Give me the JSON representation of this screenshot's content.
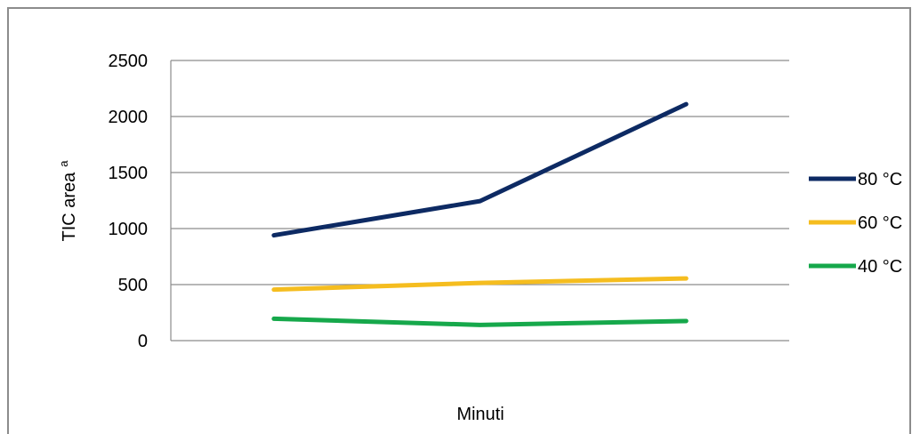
{
  "chart_data": {
    "type": "line",
    "title": "",
    "xlabel": "Minuti",
    "ylabel": "TIC area",
    "ylabel_superscript": "a",
    "categories": [
      "",
      "",
      ""
    ],
    "ylim": [
      0,
      2500
    ],
    "yticks": [
      "0",
      "500",
      "1000",
      "1500",
      "2000",
      "2500"
    ],
    "grid": true,
    "legend_position": "right",
    "series": [
      {
        "name": "80 °C",
        "color": "#0d2a63",
        "values": [
          940,
          1245,
          2110
        ]
      },
      {
        "name": "60 °C",
        "color": "#f5bd1f",
        "values": [
          455,
          515,
          555
        ]
      },
      {
        "name": "40 °C",
        "color": "#16a84b",
        "values": [
          195,
          140,
          175
        ]
      }
    ]
  }
}
